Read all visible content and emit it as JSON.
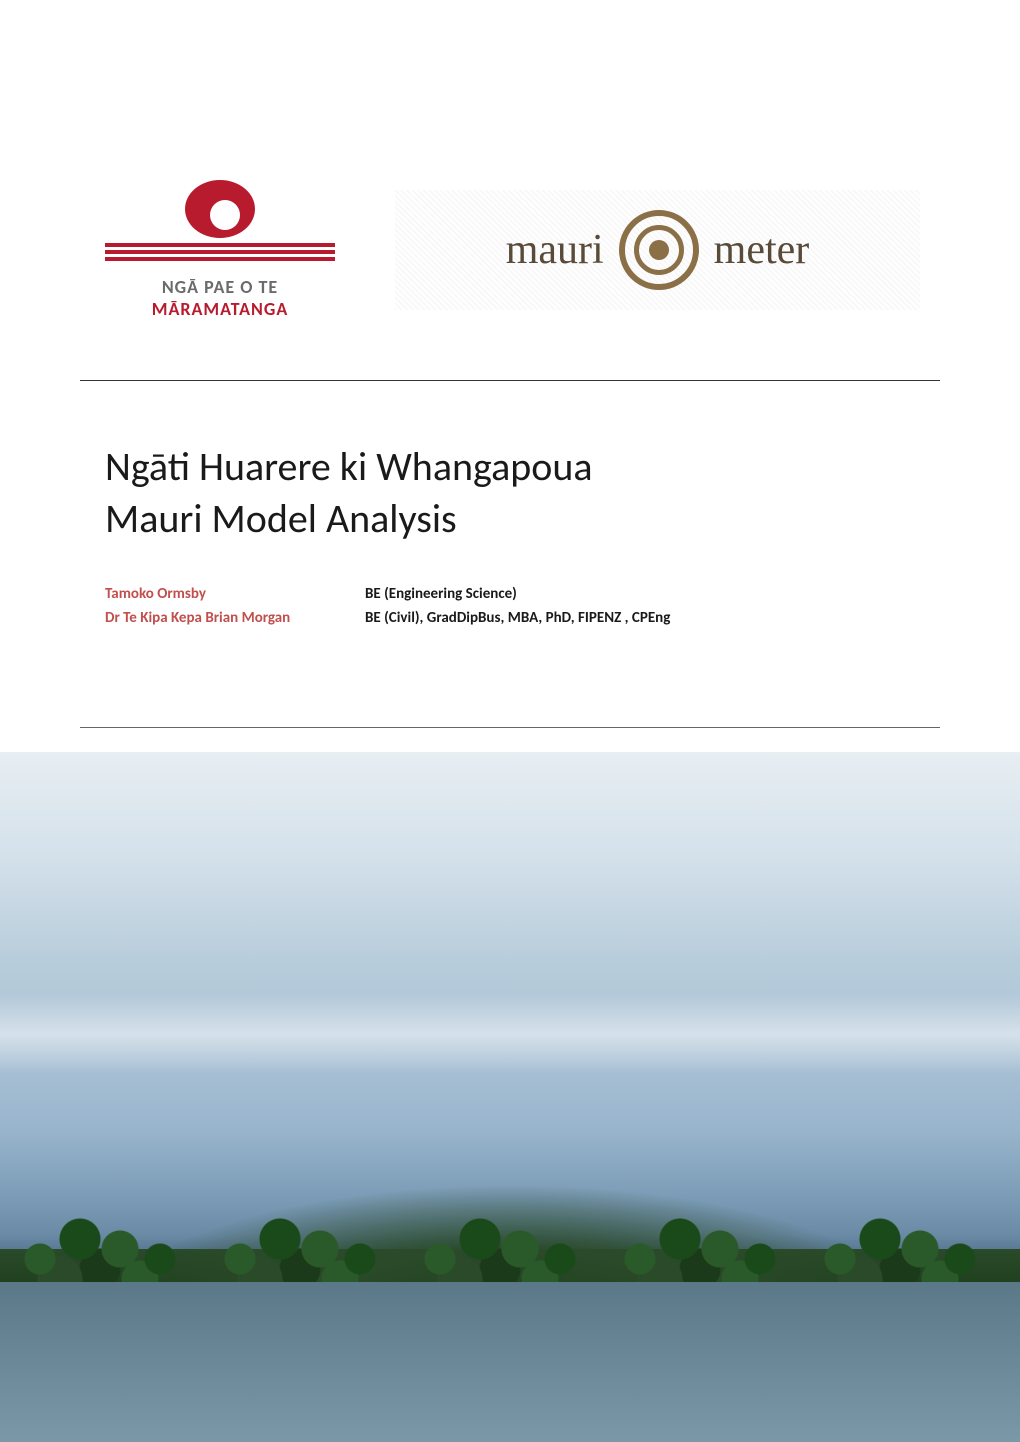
{
  "logos": {
    "ngapae": {
      "text_line1": "NGĀ PAE O TE",
      "text_line2": "MĀRAMATANGA",
      "primary_color": "#b91b2e",
      "secondary_color": "#6b6b6b"
    },
    "maurimeter": {
      "text_left": "mauri",
      "text_right": "meter",
      "color": "#5a4a3a",
      "spiral_color": "#8b6f47"
    }
  },
  "title": {
    "line1": "Ngāti Huarere ki Whangapoua",
    "line2": "Mauri Model Analysis",
    "fontsize": 40,
    "color": "#1a1a1a"
  },
  "authors": [
    {
      "name": "Tamoko Ormsby",
      "qualifications": "BE (Engineering Science)"
    },
    {
      "name": "Dr Te Kipa Kepa Brian Morgan",
      "qualifications": "BE (Civil), GradDipBus, MBA, PhD, FIPENZ , CPEng"
    }
  ],
  "author_name_color": "#c0504d",
  "author_quals_color": "#1a1a1a",
  "background_color": "#ffffff",
  "landscape": {
    "sky_colors": [
      "#e8eef2",
      "#d4e1eb",
      "#b8cddb",
      "#a8c0d4"
    ],
    "hill_colors": [
      "#1a3a1a",
      "#2a4a2a",
      "#2a5a2a"
    ],
    "water_colors": [
      "#5a7888",
      "#6a8898",
      "#7a98a8"
    ]
  }
}
